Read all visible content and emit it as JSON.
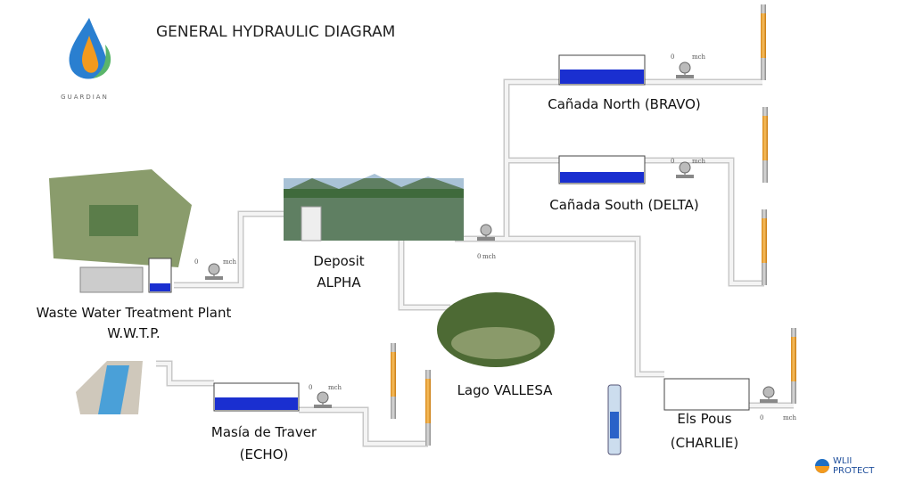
{
  "header": {
    "title": "GENERAL HYDRAULIC DIAGRAM",
    "logo": "GUARDIAN"
  },
  "sites": {
    "north": {
      "name": "Cañada North (BRAVO)",
      "meter": {
        "value": 0,
        "unit": "mch"
      }
    },
    "south": {
      "name": "Cañada South (DELTA)",
      "meter": {
        "value": 0,
        "unit": "mch"
      }
    },
    "deposit": {
      "name": [
        "Deposit",
        "ALPHA"
      ],
      "meter": {
        "value": 0,
        "unit": "mch"
      }
    },
    "wwtp": {
      "name": [
        "Waste Water Treatment Plant",
        "W.W.T.P."
      ],
      "meter": {
        "value": 0,
        "unit": "mch"
      }
    },
    "lake": {
      "name": "Lago VALLESA"
    },
    "echo": {
      "name": [
        "Masía de Traver",
        "(ECHO)"
      ],
      "meter": {
        "value": 0,
        "unit": "mch"
      }
    },
    "charlie": {
      "name": [
        "Els Pous",
        "(CHARLIE)"
      ],
      "meter": {
        "value": 0,
        "unit": "mch"
      }
    }
  },
  "footer": {
    "logo": [
      "WLII",
      "PROTECT"
    ]
  }
}
